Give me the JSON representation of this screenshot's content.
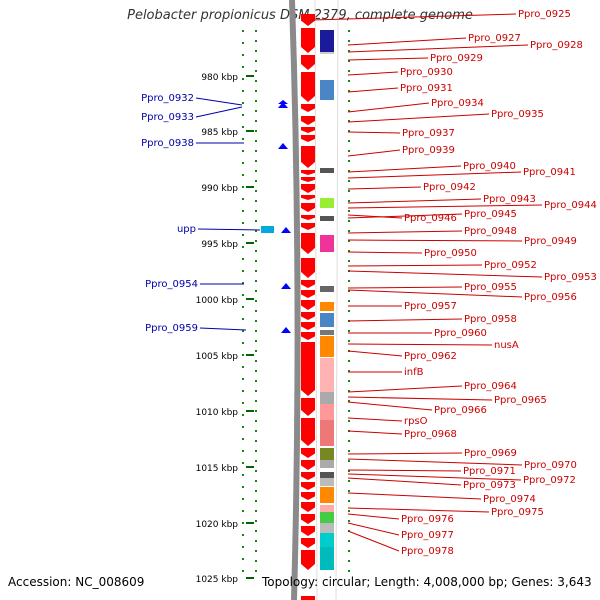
{
  "title": "Pelobacter propionicus DSM 2379, complete genome",
  "footer": {
    "accession": "Accession: NC_008609",
    "summary": "Topology: circular; Length: 4,008,000 bp; Genes: 3,643"
  },
  "colors": {
    "forward_gene": "#ff0000",
    "reverse_gene": "#0000ff",
    "forward_label": "#cc0000",
    "reverse_label": "#0000aa",
    "ruler_tick": "#006600",
    "backbone": "#888888"
  },
  "ruler": [
    {
      "label": "980 kbp"
    },
    {
      "label": "985 kbp"
    },
    {
      "label": "990 kbp"
    },
    {
      "label": "995 kbp"
    },
    {
      "label": "1000 kbp"
    },
    {
      "label": "1005 kbp"
    },
    {
      "label": "1010 kbp"
    },
    {
      "label": "1015 kbp"
    },
    {
      "label": "1020 kbp"
    },
    {
      "label": "1025 kbp"
    }
  ],
  "right_labels": [
    "Ppro_0925",
    "Ppro_0927",
    "Ppro_0928",
    "Ppro_0929",
    "Ppro_0930",
    "Ppro_0931",
    "Ppro_0934",
    "Ppro_0935",
    "Ppro_0937",
    "Ppro_0939",
    "Ppro_0940",
    "Ppro_0941",
    "Ppro_0942",
    "Ppro_0943",
    "Ppro_0944",
    "Ppro_0946",
    "Ppro_0945",
    "Ppro_0948",
    "Ppro_0949",
    "Ppro_0950",
    "Ppro_0952",
    "Ppro_0953",
    "Ppro_0955",
    "Ppro_0956",
    "Ppro_0957",
    "Ppro_0958",
    "Ppro_0960",
    "nusA",
    "Ppro_0962",
    "infB",
    "Ppro_0964",
    "Ppro_0965",
    "Ppro_0966",
    "rpsO",
    "Ppro_0968",
    "Ppro_0969",
    "Ppro_0970",
    "Ppro_0971",
    "Ppro_0972",
    "Ppro_0973",
    "Ppro_0974",
    "Ppro_0975",
    "Ppro_0976",
    "Ppro_0977",
    "Ppro_0978"
  ],
  "left_labels": [
    "Ppro_0932",
    "Ppro_0933",
    "Ppro_0938",
    "upp",
    "Ppro_0954",
    "Ppro_0959"
  ]
}
